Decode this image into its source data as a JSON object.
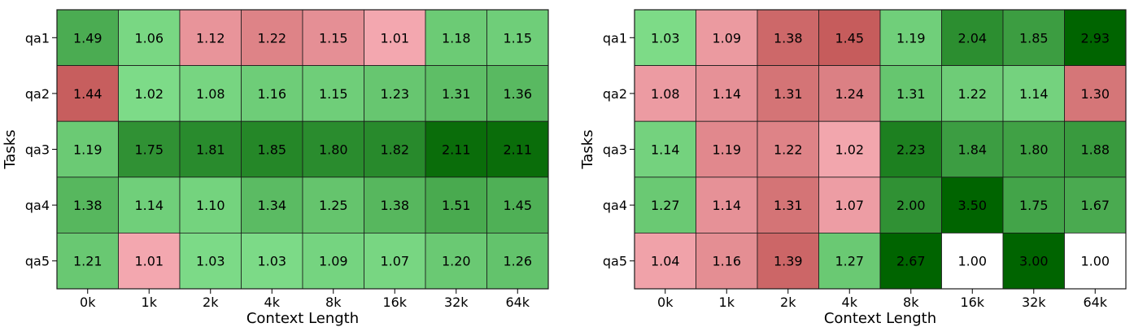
{
  "colors": {
    "green_light": "#7fdd8a",
    "green_dark": "#006400",
    "red_light": "#f4a9b1",
    "red_dark": "#c65c5c",
    "neutral": "#ffffff",
    "cell_border": "#1a1a1a",
    "text": "#000000"
  },
  "chart_data": [
    {
      "type": "heatmap",
      "title": "",
      "xlabel": "Context Length",
      "ylabel": "Tasks",
      "x_categories": [
        "0k",
        "1k",
        "2k",
        "4k",
        "8k",
        "16k",
        "32k",
        "64k"
      ],
      "y_categories": [
        "qa1",
        "qa2",
        "qa3",
        "qa4",
        "qa5"
      ],
      "values": [
        [
          1.49,
          1.06,
          1.12,
          1.22,
          1.15,
          1.01,
          1.18,
          1.15
        ],
        [
          1.44,
          1.02,
          1.08,
          1.16,
          1.15,
          1.23,
          1.31,
          1.36
        ],
        [
          1.19,
          1.75,
          1.81,
          1.85,
          1.8,
          1.82,
          2.11,
          2.11
        ],
        [
          1.38,
          1.14,
          1.1,
          1.34,
          1.25,
          1.38,
          1.51,
          1.45
        ],
        [
          1.21,
          1.01,
          1.03,
          1.03,
          1.09,
          1.07,
          1.2,
          1.26
        ]
      ],
      "polarity": [
        [
          "g",
          "g",
          "r",
          "r",
          "r",
          "r",
          "g",
          "g"
        ],
        [
          "r",
          "g",
          "g",
          "g",
          "g",
          "g",
          "g",
          "g"
        ],
        [
          "g",
          "g",
          "g",
          "g",
          "g",
          "g",
          "g",
          "g"
        ],
        [
          "g",
          "g",
          "g",
          "g",
          "g",
          "g",
          "g",
          "g"
        ],
        [
          "g",
          "r",
          "g",
          "g",
          "g",
          "g",
          "g",
          "g"
        ]
      ],
      "green_range": [
        1.0,
        2.2
      ],
      "red_range": [
        1.0,
        1.45
      ],
      "grid": false,
      "legend": "none"
    },
    {
      "type": "heatmap",
      "title": "",
      "xlabel": "Context Length",
      "ylabel": "Tasks",
      "x_categories": [
        "0k",
        "1k",
        "2k",
        "4k",
        "8k",
        "16k",
        "32k",
        "64k"
      ],
      "y_categories": [
        "qa1",
        "qa2",
        "qa3",
        "qa4",
        "qa5"
      ],
      "values": [
        [
          1.03,
          1.09,
          1.38,
          1.45,
          1.19,
          2.04,
          1.85,
          2.93
        ],
        [
          1.08,
          1.14,
          1.31,
          1.24,
          1.31,
          1.22,
          1.14,
          1.3
        ],
        [
          1.14,
          1.19,
          1.22,
          1.02,
          2.23,
          1.84,
          1.8,
          1.88
        ],
        [
          1.27,
          1.14,
          1.31,
          1.07,
          2.0,
          3.5,
          1.75,
          1.67
        ],
        [
          1.04,
          1.16,
          1.39,
          1.27,
          2.67,
          1.0,
          3.0,
          1.0
        ]
      ],
      "polarity": [
        [
          "g",
          "r",
          "r",
          "r",
          "g",
          "g",
          "g",
          "g"
        ],
        [
          "r",
          "r",
          "r",
          "r",
          "g",
          "g",
          "g",
          "r"
        ],
        [
          "g",
          "r",
          "r",
          "r",
          "g",
          "g",
          "g",
          "g"
        ],
        [
          "g",
          "r",
          "r",
          "r",
          "g",
          "g",
          "g",
          "g"
        ],
        [
          "r",
          "r",
          "r",
          "g",
          "g",
          "n",
          "g",
          "n"
        ]
      ],
      "green_range": [
        1.0,
        2.6
      ],
      "red_range": [
        1.0,
        1.45
      ],
      "grid": false,
      "legend": "none"
    }
  ]
}
